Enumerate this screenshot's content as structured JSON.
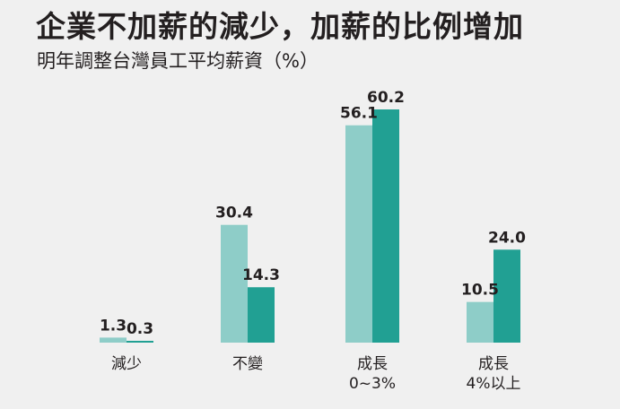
{
  "colors": {
    "background": "#f0f0f0",
    "series_1": "#8ecdc8",
    "series_2": "#21a093",
    "text": "#231f20"
  },
  "chart_data": {
    "type": "bar",
    "title": "企業不加薪的減少，加薪的比例增加",
    "subtitle": "明年調整台灣員工平均薪資（%）",
    "categories": [
      [
        "減少"
      ],
      [
        "不變"
      ],
      [
        "成長",
        "0~3%"
      ],
      [
        "成長",
        "4%以上"
      ]
    ],
    "series": [
      {
        "values": [
          1.3,
          30.4,
          56.1,
          10.5
        ]
      },
      {
        "values": [
          0.3,
          14.3,
          60.2,
          24.0
        ]
      }
    ],
    "value_labels": [
      [
        "1.3",
        "30.4",
        "56.1",
        "10.5"
      ],
      [
        "0.3",
        "14.3",
        "60.2",
        "24.0"
      ]
    ],
    "ylim": [
      0,
      60.2
    ],
    "grid": false,
    "legend": "none",
    "xlabel": "",
    "ylabel": ""
  }
}
